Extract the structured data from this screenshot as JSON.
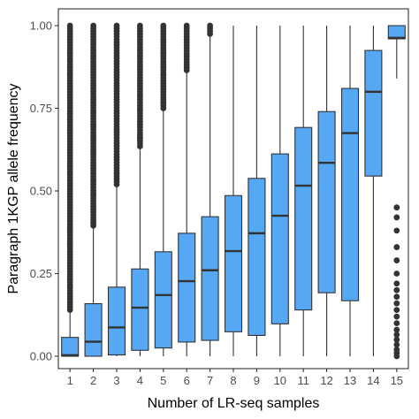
{
  "chart_data": {
    "type": "box",
    "xlabel": "Number of LR-seq samples",
    "ylabel": "Paragraph 1KGP allele frequency",
    "categories": [
      "1",
      "2",
      "3",
      "4",
      "5",
      "6",
      "7",
      "8",
      "9",
      "10",
      "11",
      "12",
      "13",
      "14",
      "15"
    ],
    "ylim": [
      0,
      1
    ],
    "yticks": [
      0.0,
      0.25,
      0.5,
      0.75,
      1.0
    ],
    "ytick_labels": [
      "0.00",
      "0.25",
      "0.50",
      "0.75",
      "1.00"
    ],
    "box_color": "#56a8f5",
    "edge_color": "#333333",
    "grid": false,
    "boxes": [
      {
        "category": "1",
        "lower_whisker": 0.0,
        "q1": 0.0,
        "median": 0.003,
        "q3": 0.057,
        "upper_whisker": 0.14,
        "outliers_range": [
          0.14,
          1.0
        ]
      },
      {
        "category": "2",
        "lower_whisker": 0.0,
        "q1": 0.0,
        "median": 0.044,
        "q3": 0.159,
        "upper_whisker": 0.395,
        "outliers_range": [
          0.395,
          1.0
        ]
      },
      {
        "category": "3",
        "lower_whisker": 0.0,
        "q1": 0.004,
        "median": 0.087,
        "q3": 0.209,
        "upper_whisker": 0.52,
        "outliers_range": [
          0.52,
          1.0
        ]
      },
      {
        "category": "4",
        "lower_whisker": 0.0,
        "q1": 0.018,
        "median": 0.147,
        "q3": 0.264,
        "upper_whisker": 0.635,
        "outliers_range": [
          0.635,
          1.0
        ]
      },
      {
        "category": "5",
        "lower_whisker": 0.0,
        "q1": 0.025,
        "median": 0.185,
        "q3": 0.316,
        "upper_whisker": 0.75,
        "outliers_range": [
          0.75,
          1.0
        ]
      },
      {
        "category": "6",
        "lower_whisker": 0.0,
        "q1": 0.043,
        "median": 0.227,
        "q3": 0.372,
        "upper_whisker": 0.865,
        "outliers_range": [
          0.865,
          1.0
        ]
      },
      {
        "category": "7",
        "lower_whisker": 0.0,
        "q1": 0.048,
        "median": 0.26,
        "q3": 0.422,
        "upper_whisker": 0.975,
        "outliers_range": [
          0.975,
          1.0
        ]
      },
      {
        "category": "8",
        "lower_whisker": 0.0,
        "q1": 0.074,
        "median": 0.318,
        "q3": 0.486,
        "upper_whisker": 1.0
      },
      {
        "category": "9",
        "lower_whisker": 0.0,
        "q1": 0.063,
        "median": 0.372,
        "q3": 0.538,
        "upper_whisker": 1.0
      },
      {
        "category": "10",
        "lower_whisker": 0.0,
        "q1": 0.098,
        "median": 0.425,
        "q3": 0.612,
        "upper_whisker": 1.0
      },
      {
        "category": "11",
        "lower_whisker": 0.0,
        "q1": 0.14,
        "median": 0.516,
        "q3": 0.692,
        "upper_whisker": 1.0
      },
      {
        "category": "12",
        "lower_whisker": 0.0,
        "q1": 0.192,
        "median": 0.585,
        "q3": 0.74,
        "upper_whisker": 1.0
      },
      {
        "category": "13",
        "lower_whisker": 0.0,
        "q1": 0.168,
        "median": 0.675,
        "q3": 0.81,
        "upper_whisker": 1.0
      },
      {
        "category": "14",
        "lower_whisker": 0.0,
        "q1": 0.545,
        "median": 0.8,
        "q3": 0.925,
        "upper_whisker": 1.0
      },
      {
        "category": "15",
        "lower_whisker": 0.84,
        "q1": 0.96,
        "median": 0.963,
        "q3": 1.0,
        "upper_whisker": 1.0,
        "outliers": [
          0.0,
          0.01,
          0.02,
          0.035,
          0.05,
          0.065,
          0.08,
          0.1,
          0.12,
          0.14,
          0.16,
          0.18,
          0.2,
          0.22,
          0.25,
          0.29,
          0.33,
          0.38,
          0.42,
          0.45
        ]
      }
    ]
  }
}
